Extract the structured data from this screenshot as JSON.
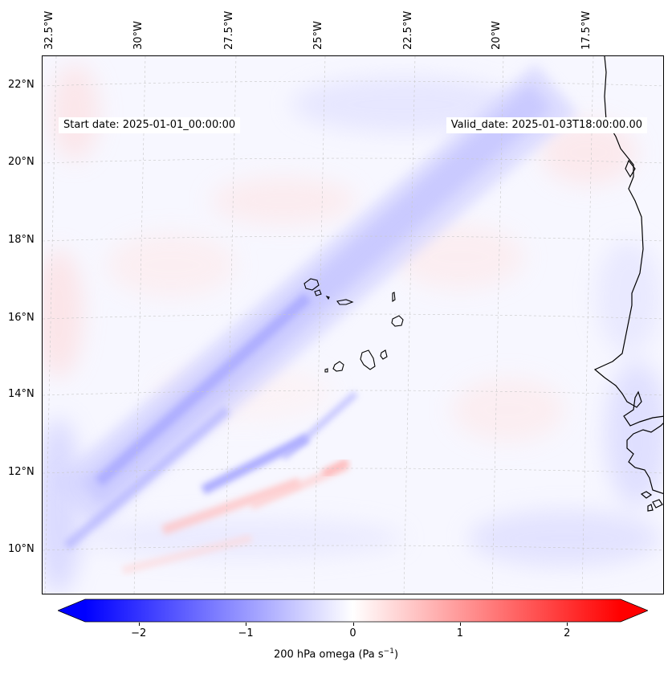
{
  "map": {
    "longitude_labels": [
      "32.5°W",
      "30°W",
      "27.5°W",
      "25°W",
      "22.5°W",
      "20°W",
      "17.5°W"
    ],
    "latitude_labels": [
      "22°N",
      "20°N",
      "18°N",
      "16°N",
      "14°N",
      "12°N",
      "10°N"
    ],
    "start_date": "Start date: 2025-01-01_00:00:00",
    "valid_date": "Valid_date: 2025-01-03T18:00:00.00",
    "coastline_color": "#000000",
    "gridline_color": "#c8c8c8"
  },
  "colorbar": {
    "ticks": [
      "−2",
      "−1",
      "0",
      "1",
      "2"
    ],
    "tick_values": [
      -2,
      -1,
      0,
      1,
      2
    ],
    "range": [
      -2.5,
      2.5
    ],
    "colormap": "bwr",
    "extend": "both",
    "label": "200 hPa omega (Pa s",
    "label_exponent": "−1",
    "label_suffix": ")",
    "colors": {
      "negative": "#0000ff",
      "zero": "#ffffff",
      "positive": "#ff0000"
    }
  }
}
